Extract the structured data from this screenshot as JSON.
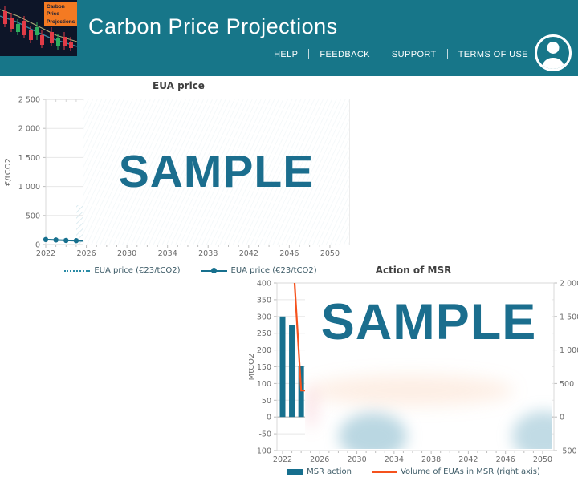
{
  "header": {
    "title": "Carbon Price Projections",
    "logo_lines": [
      "Carbon",
      "Price",
      "Projections"
    ],
    "nav": [
      "HELP",
      "FEEDBACK",
      "SUPPORT",
      "TERMS OF USE"
    ],
    "avatar_icon": "user-circle-icon"
  },
  "colors": {
    "header_bg": "#177689",
    "accent_teal": "#17708e",
    "watermark_teal": "#1b6e8e",
    "orange": "#f5521d",
    "logo_orange": "#f47a22",
    "grid": "#e7e7e7",
    "frame": "#d9d9d9",
    "tick_text": "#6b6b6b"
  },
  "chart_data": [
    {
      "type": "line",
      "title": "EUA price",
      "ylabel": "€/tCO2",
      "ylim": [
        0,
        2500
      ],
      "xlim": [
        2022,
        2052
      ],
      "grid": true,
      "legend_position": "bottom",
      "watermark": "SAMPLE",
      "yticks": {
        "values": [
          2500,
          2000,
          1500,
          1000,
          500,
          0
        ],
        "labels": [
          "2 500",
          "2 000",
          "1 500",
          "1 000",
          "500",
          "0"
        ]
      },
      "xticks": {
        "values": [
          2022,
          2026,
          2030,
          2034,
          2038,
          2042,
          2046,
          2050
        ],
        "labels": [
          "2022",
          "2026",
          "2030",
          "2034",
          "2038",
          "2042",
          "2046",
          "2050"
        ]
      },
      "series": [
        {
          "name": "EUA price (€23/tCO2)",
          "style": "dotted",
          "x": [],
          "values": []
        },
        {
          "name": "EUA price (€23/tCO2)",
          "style": "solid-marker",
          "x": [
            2022,
            2023,
            2024,
            2025,
            2026
          ],
          "values": [
            85,
            78,
            70,
            66,
            60
          ]
        }
      ]
    },
    {
      "type": "bar",
      "title": "Action of MSR",
      "ylabel_left": "MtCO2",
      "ylim_left": [
        -100,
        400
      ],
      "ylim_right": [
        -500,
        2000
      ],
      "xlim": [
        2021,
        2051
      ],
      "grid": true,
      "legend_position": "bottom",
      "watermark": "SAMPLE",
      "yticks_left": {
        "values": [
          400,
          350,
          300,
          250,
          200,
          150,
          100,
          50,
          0,
          -50,
          -100
        ],
        "labels": [
          "400",
          "350",
          "300",
          "250",
          "200",
          "150",
          "100",
          "50",
          "0",
          "-50",
          "-100"
        ]
      },
      "yticks_right": {
        "values": [
          2000,
          1500,
          1000,
          500,
          0,
          -500
        ],
        "labels": [
          "2 000",
          "1 500",
          "1 000",
          "500",
          "0",
          "-500"
        ]
      },
      "xticks": {
        "values": [
          2022,
          2026,
          2030,
          2034,
          2038,
          2042,
          2046,
          2050
        ],
        "labels": [
          "2022",
          "2026",
          "2030",
          "2034",
          "2038",
          "2042",
          "2046",
          "2050"
        ]
      },
      "series": [
        {
          "name": "MSR action",
          "type": "bar",
          "axis": "left",
          "x": [
            2022,
            2023,
            2024
          ],
          "values": [
            300,
            275,
            152
          ]
        },
        {
          "name": "Volume of EUAs in MSR (right axis)",
          "type": "line",
          "axis": "right",
          "x": [
            2022.9,
            2024,
            2024.75
          ],
          "values": [
            2900,
            395,
            395
          ]
        }
      ]
    }
  ]
}
